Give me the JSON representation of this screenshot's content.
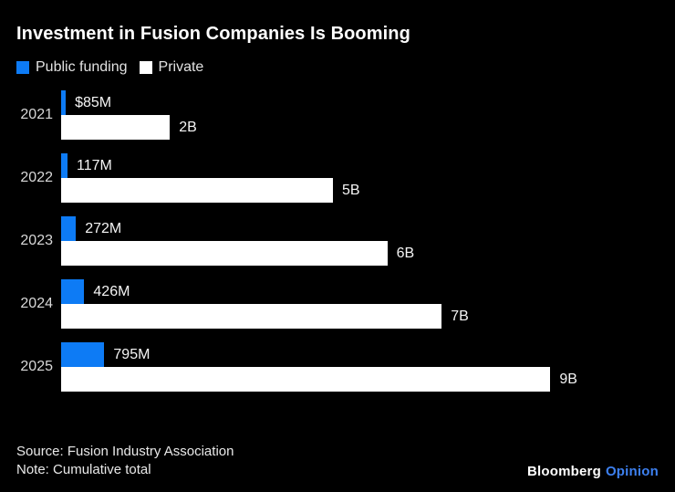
{
  "title": "Investment in Fusion Companies Is Booming",
  "chart_data": {
    "type": "bar",
    "orientation": "horizontal",
    "title": "Investment in Fusion Companies Is Booming",
    "categories": [
      "2021",
      "2022",
      "2023",
      "2024",
      "2025"
    ],
    "series": [
      {
        "name": "Public funding",
        "color": "#0d7bf5",
        "unit": "USD billions",
        "values": [
          0.085,
          0.117,
          0.272,
          0.426,
          0.795
        ],
        "labels": [
          "$85M",
          "117M",
          "272M",
          "426M",
          "795M"
        ]
      },
      {
        "name": "Private",
        "color": "#ffffff",
        "unit": "USD billions",
        "values": [
          2,
          5,
          6,
          7,
          9
        ],
        "labels": [
          "2B",
          "5B",
          "6B",
          "7B",
          "9B"
        ]
      }
    ],
    "xlim": [
      0,
      9
    ],
    "grid": false,
    "legend_position": "top-left",
    "value_labels": "outside-end"
  },
  "footer": {
    "source": "Source: Fusion Industry Association",
    "note": "Note: Cumulative total",
    "brand": "Bloomberg",
    "brand_suffix": "Opinion",
    "brand_suffix_color": "#3d80f0"
  }
}
